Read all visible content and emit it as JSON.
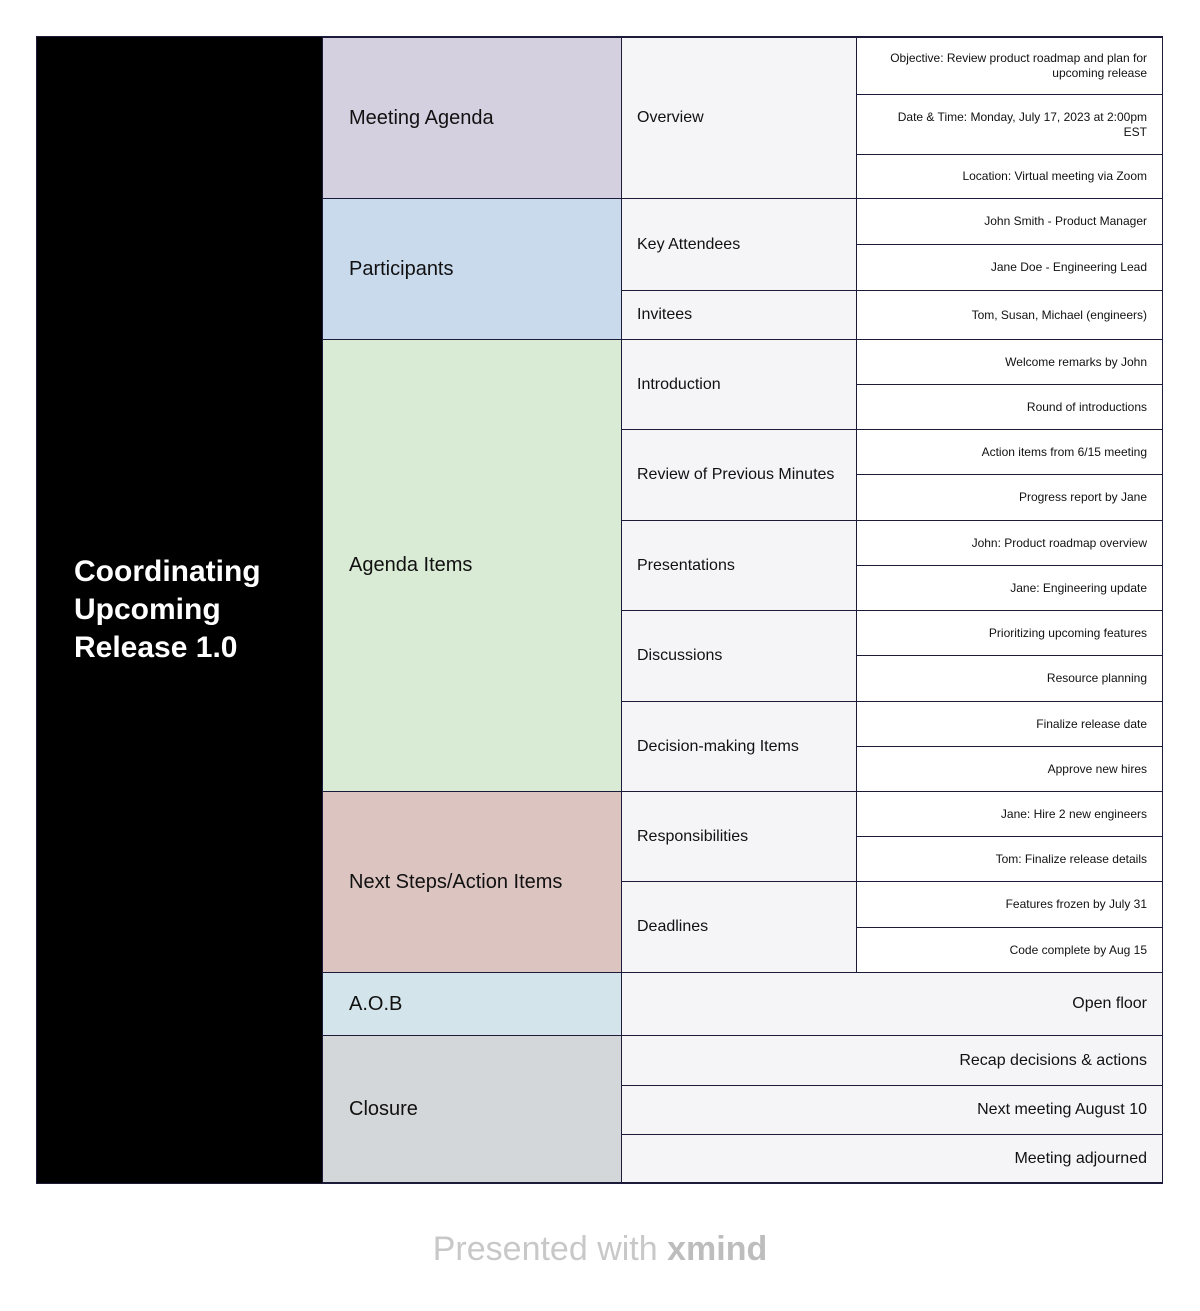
{
  "root": {
    "title": "Coordinating Upcoming Release 1.0"
  },
  "branches": {
    "meeting_agenda": {
      "label": "Meeting Agenda",
      "color": "#d5d0e0",
      "overview": {
        "label": "Overview",
        "items": [
          "Objective: Review product roadmap and plan for upcoming release",
          "Date & Time: Monday, July 17, 2023 at 2:00pm EST",
          "Location: Virtual meeting via Zoom"
        ]
      }
    },
    "participants": {
      "label": "Participants",
      "color": "#c9daed",
      "key_attendees": {
        "label": "Key Attendees",
        "items": [
          "John Smith - Product Manager",
          "Jane Doe - Engineering Lead"
        ]
      },
      "invitees": {
        "label": "Invitees",
        "items": [
          "Tom, Susan, Michael (engineers)"
        ]
      }
    },
    "agenda_items": {
      "label": "Agenda Items",
      "color": "#d9ead5",
      "introduction": {
        "label": "Introduction",
        "items": [
          "Welcome remarks by John",
          "Round of introductions"
        ]
      },
      "review": {
        "label": "Review of Previous Minutes",
        "items": [
          "Action items from 6/15 meeting",
          "Progress report by Jane"
        ]
      },
      "presentations": {
        "label": "Presentations",
        "items": [
          "John: Product roadmap overview",
          "Jane: Engineering update"
        ]
      },
      "discussions": {
        "label": "Discussions",
        "items": [
          "Prioritizing upcoming features",
          "Resource planning"
        ]
      },
      "decisions": {
        "label": "Decision-making Items",
        "items": [
          "Finalize release date",
          "Approve new hires"
        ]
      }
    },
    "next_steps": {
      "label": "Next Steps/Action Items",
      "color": "#dcc4c1",
      "responsibilities": {
        "label": "Responsibilities",
        "items": [
          "Jane: Hire 2 new engineers",
          "Tom: Finalize release details"
        ]
      },
      "deadlines": {
        "label": "Deadlines",
        "items": [
          "Features frozen by July 31",
          "Code complete by Aug 15"
        ]
      }
    },
    "aob": {
      "label": "A.O.B",
      "color": "#d3e4ea",
      "items": [
        "Open floor"
      ]
    },
    "closure": {
      "label": "Closure",
      "color": "#d4d7d9",
      "items": [
        "Recap decisions & actions",
        "Next meeting August 10",
        "Meeting adjourned"
      ]
    }
  },
  "footer": {
    "prefix": "Presented with",
    "brand": "xmind"
  }
}
